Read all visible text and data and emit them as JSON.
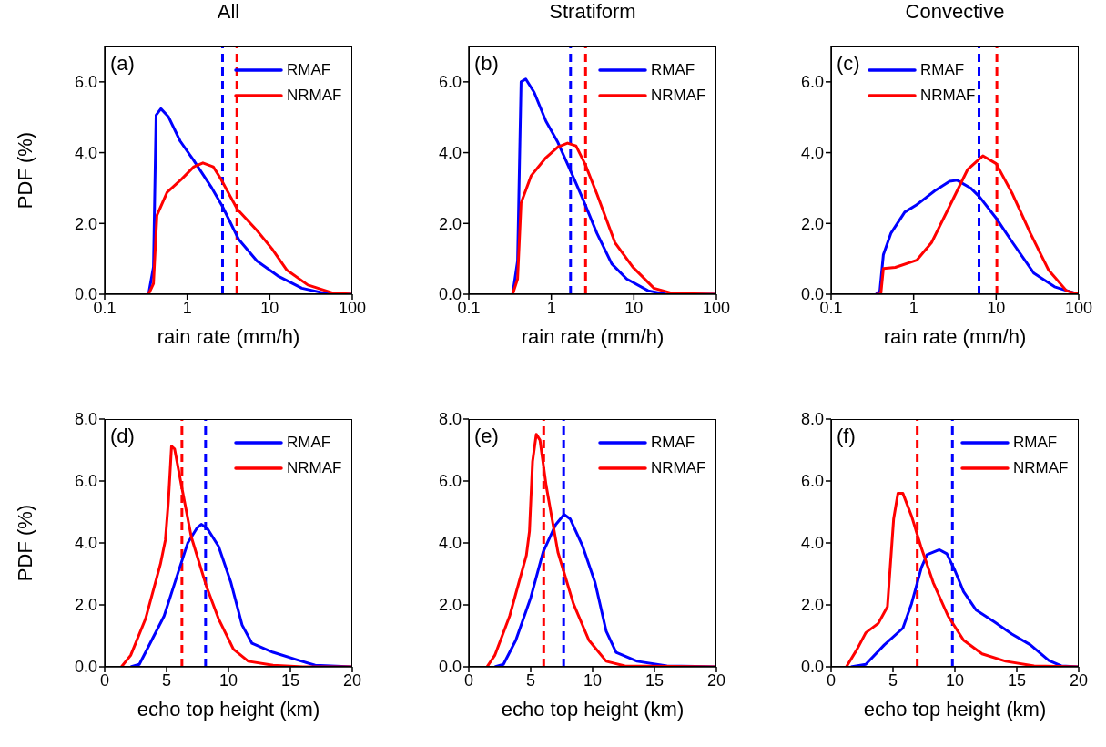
{
  "chart_data": [
    {
      "type": "line",
      "title": "All",
      "xlabel": "rain rate (mm/h)",
      "ylabel": "PDF (%)",
      "log": "x",
      "xlim": [
        0.1,
        100
      ],
      "xticks": [
        0.1,
        1,
        10,
        100
      ],
      "ylim": [
        0,
        7
      ],
      "yticks": [
        {
          "value": 0,
          "label": "0.0"
        },
        {
          "value": 2,
          "label": "2.0"
        },
        {
          "value": 4,
          "label": "4.0"
        },
        {
          "value": 6,
          "label": "6.0"
        }
      ],
      "legend": "top right",
      "annotations": [
        "(a)"
      ],
      "series": [
        {
          "name": "RMAF",
          "color": "#0000ff",
          "x": [
            0.34,
            0.39,
            0.42,
            0.48,
            0.59,
            0.82,
            1.2,
            1.99,
            2.66,
            4.2,
            7.0,
            12.5,
            24.5,
            48,
            100
          ],
          "values": [
            0,
            0.77,
            5.06,
            5.24,
            5.02,
            4.33,
            3.78,
            3.0,
            2.49,
            1.55,
            0.94,
            0.52,
            0.17,
            0.02,
            0
          ]
        },
        {
          "name": "NRMAF",
          "color": "#ff0000",
          "x": [
            0.34,
            0.39,
            0.43,
            0.57,
            0.86,
            1.2,
            1.55,
            2.07,
            2.55,
            4.05,
            7.0,
            10.6,
            16,
            29,
            57,
            100
          ],
          "values": [
            0,
            0.3,
            2.23,
            2.88,
            3.26,
            3.6,
            3.71,
            3.6,
            3.26,
            2.4,
            1.8,
            1.29,
            0.69,
            0.26,
            0.04,
            0
          ]
        }
      ],
      "ref_lines": [
        {
          "axis": "x",
          "value": 2.68,
          "color": "#0000ff",
          "line_style": "dashed"
        },
        {
          "axis": "x",
          "value": 4.0,
          "color": "#ff0000",
          "line_style": "dashed"
        }
      ]
    },
    {
      "type": "line",
      "title": "Stratiform",
      "xlabel": "rain rate (mm/h)",
      "log": "x",
      "xlim": [
        0.1,
        100
      ],
      "xticks": [
        0.1,
        1,
        10,
        100
      ],
      "ylim": [
        0,
        7
      ],
      "yticks": [
        {
          "value": 0,
          "label": "0.0"
        },
        {
          "value": 2,
          "label": "2.0"
        },
        {
          "value": 4,
          "label": "4.0"
        },
        {
          "value": 6,
          "label": "6.0"
        }
      ],
      "legend": "top right",
      "annotations": [
        "(b)"
      ],
      "series": [
        {
          "name": "RMAF",
          "color": "#0000ff",
          "x": [
            0.34,
            0.39,
            0.43,
            0.49,
            0.62,
            0.86,
            1.2,
            1.75,
            2.35,
            3.57,
            5.4,
            8.2,
            14.9,
            24.5,
            100
          ],
          "values": [
            0,
            0.94,
            6.0,
            6.08,
            5.7,
            4.89,
            4.29,
            3.43,
            2.75,
            1.72,
            0.86,
            0.43,
            0.1,
            0,
            0
          ]
        },
        {
          "name": "NRMAF",
          "color": "#ff0000",
          "x": [
            0.34,
            0.39,
            0.43,
            0.57,
            0.86,
            1.2,
            1.57,
            1.99,
            2.55,
            3.57,
            5.9,
            9.7,
            17.5,
            29,
            100
          ],
          "values": [
            0,
            0.43,
            2.58,
            3.35,
            3.86,
            4.16,
            4.27,
            4.19,
            3.69,
            2.83,
            1.46,
            0.77,
            0.17,
            0.03,
            0
          ]
        }
      ],
      "ref_lines": [
        {
          "axis": "x",
          "value": 1.71,
          "color": "#0000ff",
          "line_style": "dashed"
        },
        {
          "axis": "x",
          "value": 2.6,
          "color": "#ff0000",
          "line_style": "dashed"
        }
      ]
    },
    {
      "type": "line",
      "title": "Convective",
      "xlabel": "rain rate (mm/h)",
      "log": "x",
      "xlim": [
        0.1,
        100
      ],
      "xticks": [
        0.1,
        1,
        10,
        100
      ],
      "ylim": [
        0,
        7
      ],
      "yticks": [
        {
          "value": 0,
          "label": "0.0"
        },
        {
          "value": 2,
          "label": "2.0"
        },
        {
          "value": 4,
          "label": "4.0"
        },
        {
          "value": 6,
          "label": "6.0"
        }
      ],
      "legend": "top",
      "annotations": [
        "(c)"
      ],
      "series": [
        {
          "name": "RMAF",
          "color": "#0000ff",
          "x": [
            0.35,
            0.39,
            0.43,
            0.53,
            0.78,
            1.09,
            1.8,
            2.73,
            3.37,
            4.9,
            6.3,
            10,
            15.8,
            28.5,
            51,
            100
          ],
          "values": [
            0,
            0.1,
            1.12,
            1.72,
            2.32,
            2.53,
            2.92,
            3.19,
            3.22,
            3.0,
            2.75,
            2.15,
            1.46,
            0.6,
            0.21,
            0
          ]
        },
        {
          "name": "NRMAF",
          "color": "#ff0000",
          "x": [
            0.35,
            0.4,
            0.43,
            0.6,
            1.09,
            1.65,
            2.73,
            4.5,
            6.9,
            10,
            15.8,
            26,
            43,
            71,
            100
          ],
          "values": [
            0,
            0,
            0.73,
            0.76,
            0.96,
            1.46,
            2.49,
            3.52,
            3.91,
            3.69,
            2.83,
            1.72,
            0.69,
            0.1,
            0
          ]
        }
      ],
      "ref_lines": [
        {
          "axis": "x",
          "value": 6.2,
          "color": "#0000ff",
          "line_style": "dashed"
        },
        {
          "axis": "x",
          "value": 10.2,
          "color": "#ff0000",
          "line_style": "dashed"
        }
      ]
    },
    {
      "type": "line",
      "xlabel": "echo top height (km)",
      "ylabel": "PDF (%)",
      "xlim": [
        0,
        20
      ],
      "xticks": [
        0,
        5,
        10,
        15,
        20
      ],
      "ylim": [
        0,
        8
      ],
      "yticks": [
        {
          "value": 0,
          "label": "0.0"
        },
        {
          "value": 2,
          "label": "2.0"
        },
        {
          "value": 4,
          "label": "4.0"
        },
        {
          "value": 6,
          "label": "6.0"
        },
        {
          "value": 8,
          "label": "8.0"
        }
      ],
      "legend": "top right",
      "annotations": [
        "(d)"
      ],
      "series": [
        {
          "name": "RMAF",
          "color": "#0000ff",
          "x": [
            2.1,
            2.8,
            3.8,
            4.8,
            5.75,
            6.7,
            7.45,
            7.8,
            8.3,
            9.2,
            10.2,
            11.1,
            11.9,
            13.6,
            15.5,
            17.0,
            20
          ],
          "values": [
            0,
            0.08,
            0.86,
            1.64,
            2.82,
            3.99,
            4.48,
            4.6,
            4.46,
            3.89,
            2.72,
            1.35,
            0.76,
            0.47,
            0.23,
            0.05,
            0
          ]
        },
        {
          "name": "NRMAF",
          "color": "#ff0000",
          "x": [
            1.35,
            2.1,
            3.3,
            4.5,
            4.9,
            5.15,
            5.4,
            5.65,
            6.25,
            7.0,
            8.2,
            9.2,
            10.4,
            11.6,
            13.6,
            16,
            20
          ],
          "values": [
            0,
            0.37,
            1.55,
            3.31,
            4.09,
            5.36,
            7.12,
            7.03,
            5.75,
            4.19,
            2.62,
            1.55,
            0.57,
            0.18,
            0.05,
            0,
            0
          ]
        }
      ],
      "ref_lines": [
        {
          "axis": "x",
          "value": 6.24,
          "color": "#ff0000",
          "line_style": "dashed"
        },
        {
          "axis": "x",
          "value": 8.15,
          "color": "#0000ff",
          "line_style": "dashed"
        }
      ]
    },
    {
      "type": "line",
      "xlabel": "echo top height (km)",
      "xlim": [
        0,
        20
      ],
      "xticks": [
        0,
        5,
        10,
        15,
        20
      ],
      "ylim": [
        0,
        8
      ],
      "yticks": [
        {
          "value": 0,
          "label": "0.0"
        },
        {
          "value": 2,
          "label": "2.0"
        },
        {
          "value": 4,
          "label": "4.0"
        },
        {
          "value": 6,
          "label": "6.0"
        },
        {
          "value": 8,
          "label": "8.0"
        }
      ],
      "legend": "top right",
      "annotations": [
        "(e)"
      ],
      "series": [
        {
          "name": "RMAF",
          "color": "#0000ff",
          "x": [
            2.1,
            2.8,
            3.8,
            5.0,
            6.0,
            7.0,
            7.7,
            8.2,
            9.2,
            10.2,
            11.1,
            11.9,
            13.6,
            16,
            20
          ],
          "values": [
            0,
            0.08,
            0.86,
            2.23,
            3.7,
            4.58,
            4.92,
            4.77,
            3.89,
            2.72,
            1.15,
            0.47,
            0.18,
            0.03,
            0
          ]
        },
        {
          "name": "NRMAF",
          "color": "#ff0000",
          "x": [
            1.47,
            2.1,
            3.3,
            4.65,
            4.9,
            5.15,
            5.45,
            5.75,
            6.25,
            7.2,
            8.45,
            9.7,
            11.1,
            12.6,
            20
          ],
          "values": [
            0,
            0.37,
            1.64,
            3.6,
            4.38,
            6.63,
            7.51,
            7.32,
            5.85,
            3.7,
            2.04,
            0.86,
            0.18,
            0.03,
            0
          ]
        }
      ],
      "ref_lines": [
        {
          "axis": "x",
          "value": 6.05,
          "color": "#ff0000",
          "line_style": "dashed"
        },
        {
          "axis": "x",
          "value": 7.66,
          "color": "#0000ff",
          "line_style": "dashed"
        }
      ]
    },
    {
      "type": "line",
      "xlabel": "echo top height (km)",
      "xlim": [
        0,
        20
      ],
      "xticks": [
        0,
        5,
        10,
        15,
        20
      ],
      "ylim": [
        0,
        8
      ],
      "yticks": [
        {
          "value": 0,
          "label": "0.0"
        },
        {
          "value": 2,
          "label": "2.0"
        },
        {
          "value": 4,
          "label": "4.0"
        },
        {
          "value": 6,
          "label": "6.0"
        },
        {
          "value": 8,
          "label": "8.0"
        }
      ],
      "legend": "top right",
      "annotations": [
        "(f)"
      ],
      "series": [
        {
          "name": "RMAF",
          "color": "#0000ff",
          "x": [
            1.6,
            2.8,
            4.3,
            5.8,
            6.5,
            7.3,
            7.75,
            8.75,
            9.35,
            10,
            10.7,
            11.7,
            13.2,
            14.6,
            16.1,
            17.6,
            18.6,
            20
          ],
          "values": [
            0,
            0.08,
            0.71,
            1.25,
            2.04,
            3.21,
            3.62,
            3.78,
            3.65,
            3.11,
            2.43,
            1.84,
            1.45,
            1.06,
            0.71,
            0.2,
            0.03,
            0
          ]
        },
        {
          "name": "NRMAF",
          "color": "#ff0000",
          "x": [
            1.23,
            2.1,
            2.8,
            3.8,
            4.55,
            5.05,
            5.4,
            5.8,
            6.5,
            7.25,
            8.25,
            9.45,
            10.7,
            12.2,
            14.1,
            16.4,
            20
          ],
          "values": [
            0,
            0.57,
            1.1,
            1.4,
            1.94,
            4.77,
            5.6,
            5.6,
            4.87,
            3.89,
            2.72,
            1.64,
            0.86,
            0.42,
            0.18,
            0.03,
            0
          ]
        }
      ],
      "ref_lines": [
        {
          "axis": "x",
          "value": 6.96,
          "color": "#ff0000",
          "line_style": "dashed"
        },
        {
          "axis": "x",
          "value": 9.8,
          "color": "#0000ff",
          "line_style": "dashed"
        }
      ]
    }
  ]
}
